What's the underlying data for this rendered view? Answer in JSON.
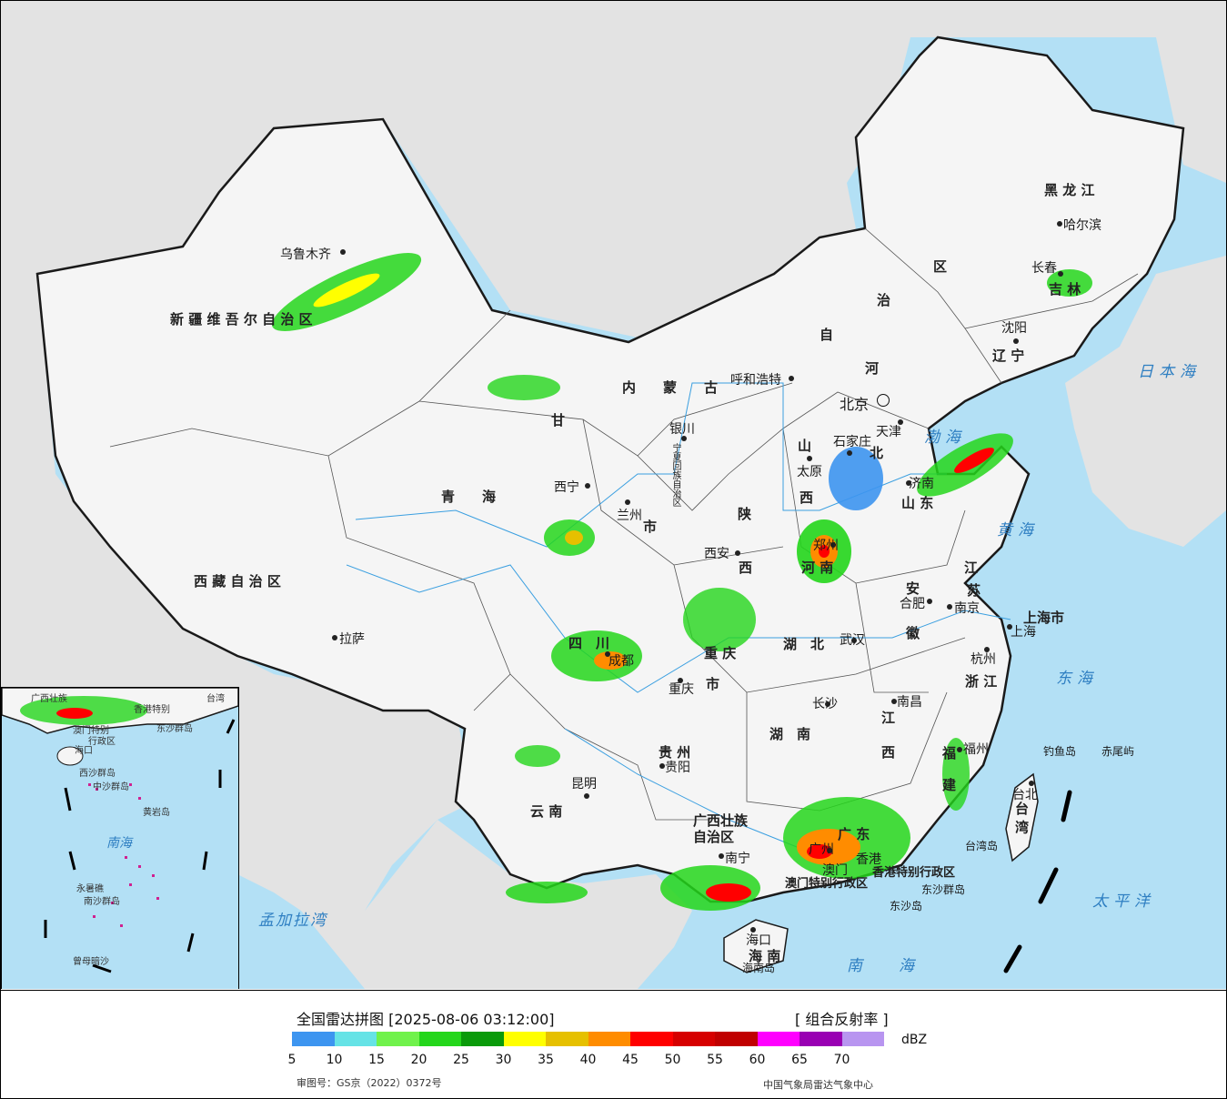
{
  "title": "全国雷达拼图 [2025-08-06 03:12:00]",
  "product": "[ 组合反射率 ]",
  "unit": "dBZ",
  "approval_number": "审图号：GS京（2022）0372号",
  "agency": "中国气象局雷达气象中心",
  "legend": {
    "colors": [
      "#3d95f0",
      "#66e3e6",
      "#70f24b",
      "#24d61b",
      "#0a9a0a",
      "#ffff00",
      "#e6c000",
      "#ff8c00",
      "#ff0000",
      "#d60000",
      "#c00000",
      "#ff00ff",
      "#9900b3",
      "#b895f0"
    ],
    "ticks": [
      "5",
      "10",
      "15",
      "20",
      "25",
      "30",
      "35",
      "40",
      "45",
      "50",
      "55",
      "60",
      "65",
      "70"
    ]
  },
  "cities": [
    {
      "name": "乌鲁木齐"
    },
    {
      "name": "拉萨"
    },
    {
      "name": "西宁"
    },
    {
      "name": "兰州"
    },
    {
      "name": "银川"
    },
    {
      "name": "呼和浩特"
    },
    {
      "name": "北京"
    },
    {
      "name": "天津"
    },
    {
      "name": "石家庄"
    },
    {
      "name": "太原"
    },
    {
      "name": "济南"
    },
    {
      "name": "西安"
    },
    {
      "name": "郑州"
    },
    {
      "name": "合肥"
    },
    {
      "name": "南京"
    },
    {
      "name": "上海"
    },
    {
      "name": "杭州"
    },
    {
      "name": "武汉"
    },
    {
      "name": "成都"
    },
    {
      "name": "重庆"
    },
    {
      "name": "长沙"
    },
    {
      "name": "南昌"
    },
    {
      "name": "福州"
    },
    {
      "name": "贵阳"
    },
    {
      "name": "昆明"
    },
    {
      "name": "南宁"
    },
    {
      "name": "广州"
    },
    {
      "name": "香港"
    },
    {
      "name": "澳门"
    },
    {
      "name": "海口"
    },
    {
      "name": "台北"
    },
    {
      "name": "沈阳"
    },
    {
      "name": "长春"
    },
    {
      "name": "哈尔滨"
    }
  ],
  "provinces": [
    {
      "name": "新 疆 维 吾 尔 自 治 区"
    },
    {
      "name": "西 藏 自 治 区"
    },
    {
      "name": "青　　海"
    },
    {
      "name": "甘"
    },
    {
      "name": "内　　蒙　　古"
    },
    {
      "name": "自"
    },
    {
      "name": "治"
    },
    {
      "name": "区"
    },
    {
      "name": "黑 龙 江"
    },
    {
      "name": "吉 林"
    },
    {
      "name": "辽 宁"
    },
    {
      "name": "河"
    },
    {
      "name": "北"
    },
    {
      "name": "山"
    },
    {
      "name": "西"
    },
    {
      "name": "山 东"
    },
    {
      "name": "陕"
    },
    {
      "name": "西"
    },
    {
      "name": "河 南"
    },
    {
      "name": "江"
    },
    {
      "name": "苏"
    },
    {
      "name": "安"
    },
    {
      "name": "徽"
    },
    {
      "name": "上海市"
    },
    {
      "name": "浙 江"
    },
    {
      "name": "湖　北"
    },
    {
      "name": "四　川"
    },
    {
      "name": "重 庆"
    },
    {
      "name": "市"
    },
    {
      "name": "湖　南"
    },
    {
      "name": "江"
    },
    {
      "name": "西"
    },
    {
      "name": "福"
    },
    {
      "name": "建"
    },
    {
      "name": "贵 州"
    },
    {
      "name": "云 南"
    },
    {
      "name": "广西壮族"
    },
    {
      "name": "自治区"
    },
    {
      "name": "广 东"
    },
    {
      "name": "香港特别行政区"
    },
    {
      "name": "澳门特别行政区"
    },
    {
      "name": "海 南"
    },
    {
      "name": "台 湾"
    },
    {
      "name": "宁夏回族自治区"
    },
    {
      "name": "市"
    }
  ],
  "seas": [
    {
      "name": "日本海"
    },
    {
      "name": "渤海"
    },
    {
      "name": "黄海"
    },
    {
      "name": "东海"
    },
    {
      "name": "太平洋"
    },
    {
      "name": "南海"
    },
    {
      "name": "孟加拉湾"
    }
  ],
  "islands": [
    {
      "name": "钓鱼岛"
    },
    {
      "name": "赤尾屿"
    },
    {
      "name": "台湾岛"
    },
    {
      "name": "东沙群岛"
    },
    {
      "name": "东沙岛"
    },
    {
      "name": "海南岛"
    }
  ],
  "inset": {
    "labels": [
      {
        "name": "广西壮族"
      },
      {
        "name": "台湾"
      },
      {
        "name": "香港特别"
      },
      {
        "name": "澳门特别"
      },
      {
        "name": "行政区"
      },
      {
        "name": "东沙群岛"
      },
      {
        "name": "海口"
      },
      {
        "name": "西沙群岛"
      },
      {
        "name": "中沙群岛"
      },
      {
        "name": "黄岩岛"
      },
      {
        "name": "南海"
      },
      {
        "name": "永暑礁"
      },
      {
        "name": "南沙群岛"
      },
      {
        "name": "曾母暗沙"
      }
    ]
  }
}
